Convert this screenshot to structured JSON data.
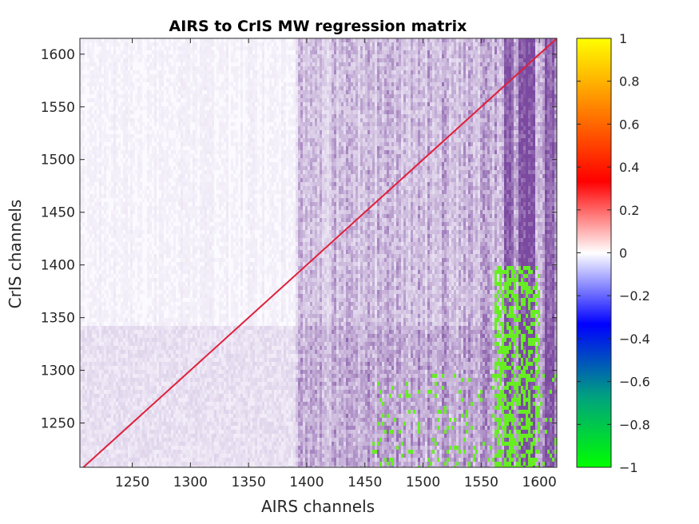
{
  "chart_data": {
    "type": "heatmap",
    "title": "AIRS to CrIS MW regression matrix",
    "xlabel": "AIRS channels",
    "ylabel": "CrIS channels",
    "xlim": [
      1205,
      1615
    ],
    "ylim": [
      1208,
      1615
    ],
    "x_ticks": [
      1250,
      1300,
      1350,
      1400,
      1450,
      1500,
      1550,
      1600
    ],
    "y_ticks": [
      1250,
      1300,
      1350,
      1400,
      1450,
      1500,
      1550,
      1600
    ],
    "colorbar": {
      "clim": [
        -1,
        1
      ],
      "ticks": [
        1,
        0.8,
        0.6,
        0.4,
        0.2,
        0,
        -0.2,
        -0.4,
        -0.6,
        -0.8,
        -1
      ],
      "tick_labels": [
        "1",
        "0.8",
        "0.6",
        "0.4",
        "0.2",
        "0",
        "−0.2",
        "−0.4",
        "−0.6",
        "−0.8",
        "−1"
      ],
      "colors": [
        "#00ff00",
        "#00a080",
        "#0000ff",
        "#ffffff",
        "#ff0000",
        "#ff8000",
        "#ffff00"
      ]
    },
    "features": {
      "diagonal_value": 0.65,
      "diagonal_color": "#e0203a",
      "background_value": 0.0,
      "offdiag_color": "#7b4aa0",
      "saturated_negative_color": "#66ee22",
      "strong_columns": [
        1572,
        1585,
        1592,
        1608
      ]
    }
  }
}
